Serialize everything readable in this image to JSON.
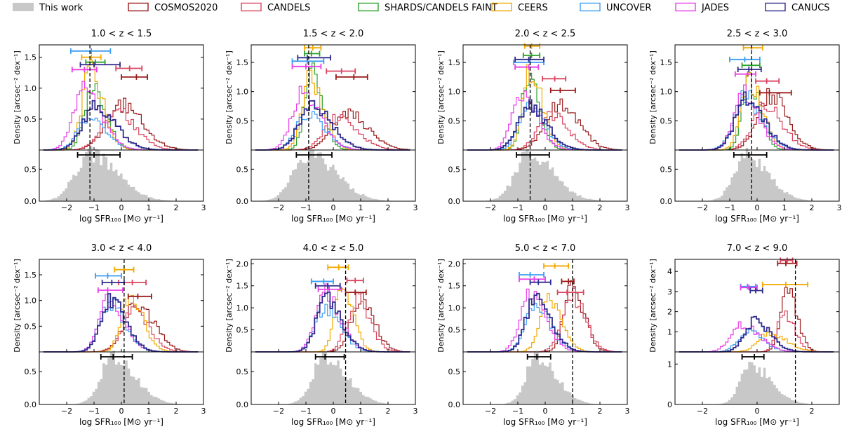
{
  "legend": [
    {
      "label": "This work",
      "color": "#c8c8c8",
      "kind": "fill"
    },
    {
      "label": "COSMOS2020",
      "color": "#9b1b1b",
      "kind": "line"
    },
    {
      "label": "CANDELS",
      "color": "#d9455f",
      "kind": "line"
    },
    {
      "label": "SHARDS/CANDELS FAINT",
      "color": "#2ca02c",
      "kind": "line"
    },
    {
      "label": "CEERS",
      "color": "#f2a900",
      "kind": "line"
    },
    {
      "label": "UNCOVER",
      "color": "#3d9df2",
      "kind": "line"
    },
    {
      "label": "JADES",
      "color": "#e83ee8",
      "kind": "line"
    },
    {
      "label": "CANUCS",
      "color": "#2e2a8e",
      "kind": "line"
    }
  ],
  "axis_text": {
    "ylabel_top": "Density [arcsec⁻² dex⁻¹]",
    "xlabel": "log SFR₁₀₀ [M⊙ yr⁻¹]"
  },
  "chart_data": [
    {
      "type": "histogram",
      "title": "1.0 < z < 1.5",
      "xlim": [
        -3,
        3
      ],
      "ylim_top": [
        0,
        1.7
      ],
      "yticks_top": [
        0,
        0.5,
        1.0,
        1.5
      ],
      "ylim_bot": [
        0,
        0.8
      ],
      "yticks_bot": [
        0,
        0.5
      ],
      "xticks": [
        -2,
        -1,
        0,
        1,
        2,
        3
      ],
      "ref_line": -1.15,
      "surveys": [
        {
          "name": "COSMOS2020",
          "peak": 0.0,
          "width": 0.55,
          "height": 0.72,
          "err": {
            "y": 1.18,
            "c": 0.55,
            "lo": 0.0,
            "hi": 0.95
          }
        },
        {
          "name": "CANDELS",
          "peak": -0.2,
          "width": 0.5,
          "height": 0.65,
          "err": {
            "y": 1.32,
            "c": 0.3,
            "lo": -0.2,
            "hi": 0.75
          }
        },
        {
          "name": "SHARDS/CANDELS FAINT",
          "peak": -1.05,
          "width": 0.3,
          "height": 1.05,
          "err": {
            "y": 1.42,
            "c": -0.95,
            "lo": -1.3,
            "hi": -0.6
          }
        },
        {
          "name": "CEERS",
          "peak": -1.15,
          "width": 0.3,
          "height": 1.25,
          "err": {
            "y": 1.5,
            "c": -1.1,
            "lo": -1.45,
            "hi": -0.75
          }
        },
        {
          "name": "UNCOVER",
          "peak": -1.2,
          "width": 0.4,
          "height": 0.5,
          "err": {
            "y": 1.6,
            "c": -1.1,
            "lo": -1.85,
            "hi": -0.4
          }
        },
        {
          "name": "JADES",
          "peak": -1.35,
          "width": 0.4,
          "height": 0.95,
          "err": {
            "y": 1.3,
            "c": -1.35,
            "lo": -1.8,
            "hi": -0.9
          }
        },
        {
          "name": "CANUCS",
          "peak": -0.95,
          "width": 0.45,
          "height": 0.7,
          "err": {
            "y": 1.38,
            "c": -1.0,
            "lo": -1.5,
            "hi": -0.05
          }
        }
      ],
      "this_work": {
        "peak": -1.15,
        "width": 0.55,
        "height": 0.73,
        "err": {
          "c": -1.0,
          "lo": -1.6,
          "hi": -0.05
        }
      }
    },
    {
      "type": "histogram",
      "title": "1.5 < z < 2.0",
      "xlim": [
        -3,
        3
      ],
      "ylim_top": [
        0,
        1.8
      ],
      "yticks_top": [
        0,
        0.5,
        1.0,
        1.5
      ],
      "ylim_bot": [
        0,
        0.8
      ],
      "yticks_bot": [
        0,
        0.5
      ],
      "xticks": [
        -2,
        -1,
        0,
        1,
        2,
        3
      ],
      "ref_line": -0.9,
      "surveys": [
        {
          "name": "COSMOS2020",
          "peak": 0.5,
          "width": 0.55,
          "height": 0.62,
          "err": {
            "y": 1.25,
            "c": 0.75,
            "lo": 0.1,
            "hi": 1.25
          }
        },
        {
          "name": "CANDELS",
          "peak": 0.2,
          "width": 0.5,
          "height": 0.55,
          "err": {
            "y": 1.35,
            "c": 0.3,
            "lo": -0.25,
            "hi": 0.8
          }
        },
        {
          "name": "SHARDS/CANDELS FAINT",
          "peak": -0.8,
          "width": 0.25,
          "height": 1.35,
          "err": {
            "y": 1.65,
            "c": -0.8,
            "lo": -1.05,
            "hi": -0.5
          }
        },
        {
          "name": "CEERS",
          "peak": -0.85,
          "width": 0.3,
          "height": 1.2,
          "err": {
            "y": 1.75,
            "c": -0.75,
            "lo": -1.05,
            "hi": -0.45
          }
        },
        {
          "name": "UNCOVER",
          "peak": -0.95,
          "width": 0.4,
          "height": 0.6,
          "err": {
            "y": 1.52,
            "c": -0.95,
            "lo": -1.5,
            "hi": -0.35
          }
        },
        {
          "name": "JADES",
          "peak": -1.1,
          "width": 0.4,
          "height": 1.0,
          "err": {
            "y": 1.43,
            "c": -1.0,
            "lo": -1.5,
            "hi": -0.45
          }
        },
        {
          "name": "CANUCS",
          "peak": -0.8,
          "width": 0.45,
          "height": 0.75,
          "err": {
            "y": 1.58,
            "c": -0.95,
            "lo": -1.3,
            "hi": -0.1
          }
        }
      ],
      "this_work": {
        "peak": -0.9,
        "width": 0.55,
        "height": 0.73,
        "err": {
          "c": -0.9,
          "lo": -1.35,
          "hi": -0.05
        }
      }
    },
    {
      "type": "histogram",
      "title": "2.0 < z < 2.5",
      "xlim": [
        -3,
        3
      ],
      "ylim_top": [
        0,
        1.8
      ],
      "yticks_top": [
        0,
        0.5,
        1.0,
        1.5
      ],
      "ylim_bot": [
        0,
        0.8
      ],
      "yticks_bot": [
        0,
        0.5
      ],
      "xticks": [
        -2,
        -1,
        0,
        1,
        2,
        3
      ],
      "ref_line": -0.55,
      "surveys": [
        {
          "name": "COSMOS2020",
          "peak": 0.5,
          "width": 0.5,
          "height": 0.8,
          "err": {
            "y": 1.02,
            "c": 0.55,
            "lo": 0.2,
            "hi": 1.1
          }
        },
        {
          "name": "CANDELS",
          "peak": 0.2,
          "width": 0.45,
          "height": 0.6,
          "err": {
            "y": 1.22,
            "c": 0.35,
            "lo": -0.1,
            "hi": 0.75
          }
        },
        {
          "name": "SHARDS/CANDELS FAINT",
          "peak": -0.6,
          "width": 0.25,
          "height": 1.25,
          "err": {
            "y": 1.62,
            "c": -0.5,
            "lo": -0.8,
            "hi": -0.2
          }
        },
        {
          "name": "CEERS",
          "peak": -0.55,
          "width": 0.28,
          "height": 1.3,
          "err": {
            "y": 1.78,
            "c": -0.5,
            "lo": -0.75,
            "hi": -0.2
          }
        },
        {
          "name": "UNCOVER",
          "peak": -0.6,
          "width": 0.35,
          "height": 0.8,
          "err": {
            "y": 1.5,
            "c": -0.55,
            "lo": -1.15,
            "hi": -0.05
          }
        },
        {
          "name": "JADES",
          "peak": -0.85,
          "width": 0.35,
          "height": 0.95,
          "err": {
            "y": 1.42,
            "c": -0.6,
            "lo": -1.1,
            "hi": -0.25
          }
        },
        {
          "name": "CANUCS",
          "peak": -0.6,
          "width": 0.4,
          "height": 0.75,
          "err": {
            "y": 1.55,
            "c": -0.6,
            "lo": -1.1,
            "hi": -0.05
          }
        }
      ],
      "this_work": {
        "peak": -0.6,
        "width": 0.5,
        "height": 0.73,
        "err": {
          "c": -0.55,
          "lo": -1.05,
          "hi": 0.15
        }
      }
    },
    {
      "type": "histogram",
      "title": "2.5 < z < 3.0",
      "xlim": [
        -3,
        3
      ],
      "ylim_top": [
        0,
        1.8
      ],
      "yticks_top": [
        0,
        0.5,
        1.0,
        1.5
      ],
      "ylim_bot": [
        0,
        0.8
      ],
      "yticks_bot": [
        0,
        0.5
      ],
      "xticks": [
        -2,
        -1,
        0,
        1,
        2,
        3
      ],
      "ref_line": -0.2,
      "surveys": [
        {
          "name": "COSMOS2020",
          "peak": 0.45,
          "width": 0.45,
          "height": 0.95,
          "err": {
            "y": 0.98,
            "c": 0.45,
            "lo": 0.1,
            "hi": 1.25
          }
        },
        {
          "name": "CANDELS",
          "peak": 0.3,
          "width": 0.45,
          "height": 0.75,
          "err": {
            "y": 1.18,
            "c": 0.35,
            "lo": -0.05,
            "hi": 0.8
          }
        },
        {
          "name": "SHARDS/CANDELS FAINT",
          "peak": -0.3,
          "width": 0.25,
          "height": 1.2,
          "err": {
            "y": 1.45,
            "c": -0.2,
            "lo": -0.55,
            "hi": 0.1
          }
        },
        {
          "name": "CEERS",
          "peak": -0.3,
          "width": 0.3,
          "height": 1.2,
          "err": {
            "y": 1.75,
            "c": -0.2,
            "lo": -0.5,
            "hi": 0.2
          }
        },
        {
          "name": "UNCOVER",
          "peak": -0.45,
          "width": 0.4,
          "height": 0.9,
          "err": {
            "y": 1.55,
            "c": -0.45,
            "lo": -1.0,
            "hi": 0.1
          }
        },
        {
          "name": "JADES",
          "peak": -0.5,
          "width": 0.35,
          "height": 0.95,
          "err": {
            "y": 1.3,
            "c": -0.35,
            "lo": -0.8,
            "hi": -0.05
          }
        },
        {
          "name": "CANUCS",
          "peak": -0.4,
          "width": 0.4,
          "height": 0.9,
          "err": {
            "y": 1.38,
            "c": -0.3,
            "lo": -0.7,
            "hi": 0.15
          }
        }
      ],
      "this_work": {
        "peak": -0.4,
        "width": 0.45,
        "height": 0.72,
        "err": {
          "c": -0.3,
          "lo": -0.85,
          "hi": 0.35
        }
      }
    },
    {
      "type": "histogram",
      "title": "3.0 < z < 4.0",
      "xlim": [
        -3,
        3
      ],
      "ylim_top": [
        0,
        1.8
      ],
      "yticks_top": [
        0,
        0.5,
        1.0,
        1.5
      ],
      "ylim_bot": [
        0,
        0.8
      ],
      "yticks_bot": [
        0,
        0.5
      ],
      "xticks": [
        -2,
        -1,
        0,
        1,
        2,
        3
      ],
      "ref_line": 0.1,
      "surveys": [
        {
          "name": "COSMOS2020",
          "peak": 0.55,
          "width": 0.45,
          "height": 0.95,
          "err": {
            "y": 1.08,
            "c": 0.6,
            "lo": 0.25,
            "hi": 1.1
          }
        },
        {
          "name": "CANDELS",
          "peak": 0.45,
          "width": 0.4,
          "height": 0.8,
          "err": {
            "y": 1.35,
            "c": 0.4,
            "lo": -0.1,
            "hi": 0.9
          }
        },
        {
          "name": "CEERS",
          "peak": 0.3,
          "width": 0.3,
          "height": 1.1,
          "err": {
            "y": 1.6,
            "c": 0.1,
            "lo": -0.25,
            "hi": 0.45
          }
        },
        {
          "name": "UNCOVER",
          "peak": -0.45,
          "width": 0.35,
          "height": 0.95,
          "err": {
            "y": 1.48,
            "c": -0.5,
            "lo": -0.95,
            "hi": 0.0
          }
        },
        {
          "name": "JADES",
          "peak": -0.45,
          "width": 0.35,
          "height": 1.0,
          "err": {
            "y": 1.2,
            "c": -0.5,
            "lo": -0.85,
            "hi": 0.05
          }
        },
        {
          "name": "CANUCS",
          "peak": -0.4,
          "width": 0.35,
          "height": 1.0,
          "err": {
            "y": 1.35,
            "c": -0.35,
            "lo": -0.7,
            "hi": 0.1
          }
        }
      ],
      "this_work": {
        "peak": -0.3,
        "width": 0.45,
        "height": 0.72,
        "err": {
          "c": -0.3,
          "lo": -0.75,
          "hi": 0.4
        }
      }
    },
    {
      "type": "histogram",
      "title": "4.0 < z < 5.0",
      "xlim": [
        -3,
        3
      ],
      "ylim_top": [
        0,
        2.1
      ],
      "yticks_top": [
        0,
        0.5,
        1.0,
        1.5,
        2.0
      ],
      "ylim_bot": [
        0,
        0.8
      ],
      "yticks_bot": [
        0,
        0.5
      ],
      "xticks": [
        -2,
        -1,
        0,
        1,
        2,
        3
      ],
      "ref_line": 0.45,
      "surveys": [
        {
          "name": "COSMOS2020",
          "peak": 1.0,
          "width": 0.35,
          "height": 1.2,
          "err": {
            "y": 1.35,
            "c": 0.8,
            "lo": 0.45,
            "hi": 1.2
          }
        },
        {
          "name": "CANDELS",
          "peak": 0.85,
          "width": 0.35,
          "height": 1.15,
          "err": {
            "y": 1.62,
            "c": 0.8,
            "lo": 0.5,
            "hi": 1.1
          }
        },
        {
          "name": "CEERS",
          "peak": 0.3,
          "width": 0.25,
          "height": 1.6,
          "err": {
            "y": 1.92,
            "c": 0.2,
            "lo": -0.2,
            "hi": 0.55
          }
        },
        {
          "name": "UNCOVER",
          "peak": -0.3,
          "width": 0.35,
          "height": 1.0,
          "err": {
            "y": 1.6,
            "c": -0.35,
            "lo": -0.8,
            "hi": 0.0
          }
        },
        {
          "name": "JADES",
          "peak": -0.3,
          "width": 0.35,
          "height": 1.35,
          "err": {
            "y": 1.42,
            "c": -0.15,
            "lo": -0.55,
            "hi": 0.3
          }
        },
        {
          "name": "CANUCS",
          "peak": -0.25,
          "width": 0.35,
          "height": 1.2,
          "err": {
            "y": 1.5,
            "c": -0.2,
            "lo": -0.65,
            "hi": 0.25
          }
        }
      ],
      "this_work": {
        "peak": -0.3,
        "width": 0.45,
        "height": 0.72,
        "err": {
          "c": -0.3,
          "lo": -0.65,
          "hi": 0.4
        }
      }
    },
    {
      "type": "histogram",
      "title": "5.0 < z < 7.0",
      "xlim": [
        -3,
        3
      ],
      "ylim_top": [
        0,
        2.1
      ],
      "yticks_top": [
        0,
        0.5,
        1.0,
        1.5,
        2.0
      ],
      "ylim_bot": [
        0,
        0.8
      ],
      "yticks_bot": [
        0,
        0.5
      ],
      "xticks": [
        -2,
        -1,
        0,
        1,
        2,
        3
      ],
      "ref_line": 1.0,
      "surveys": [
        {
          "name": "COSMOS2020",
          "peak": 1.0,
          "width": 0.3,
          "height": 1.45,
          "err": {
            "y": 1.6,
            "c": 0.85,
            "lo": 0.6,
            "hi": 1.05
          }
        },
        {
          "name": "CANDELS",
          "peak": 0.95,
          "width": 0.35,
          "height": 1.3,
          "err": {
            "y": 1.35,
            "c": 0.8,
            "lo": 0.45,
            "hi": 1.4
          }
        },
        {
          "name": "CEERS",
          "peak": 0.1,
          "width": 0.3,
          "height": 1.2,
          "err": {
            "y": 1.95,
            "c": 0.35,
            "lo": -0.05,
            "hi": 0.85
          }
        },
        {
          "name": "UNCOVER",
          "peak": -0.4,
          "width": 0.35,
          "height": 1.1,
          "err": {
            "y": 1.75,
            "c": -0.55,
            "lo": -0.95,
            "hi": -0.05
          }
        },
        {
          "name": "JADES",
          "peak": -0.55,
          "width": 0.35,
          "height": 1.35,
          "err": {
            "y": 1.65,
            "c": -0.4,
            "lo": -0.95,
            "hi": 0.0
          }
        },
        {
          "name": "CANUCS",
          "peak": -0.35,
          "width": 0.35,
          "height": 1.25,
          "err": {
            "y": 1.58,
            "c": -0.25,
            "lo": -0.55,
            "hi": 0.2
          }
        }
      ],
      "this_work": {
        "peak": -0.3,
        "width": 0.4,
        "height": 0.72,
        "err": {
          "c": -0.3,
          "lo": -0.65,
          "hi": 0.2
        }
      }
    },
    {
      "type": "histogram",
      "title": "7.0 < z < 9.0",
      "xlim": [
        -3,
        3
      ],
      "ylim_top": [
        0,
        4.6
      ],
      "yticks_top": [
        0,
        1,
        2,
        3,
        4
      ],
      "ylim_bot": [
        0,
        1.3
      ],
      "yticks_bot": [
        0,
        1
      ],
      "xticks": [
        -2,
        0,
        2
      ],
      "ref_line": 1.4,
      "surveys": [
        {
          "name": "COSMOS2020",
          "peak": 1.1,
          "width": 0.25,
          "height": 3.2,
          "err": {
            "y": 4.4,
            "c": 1.05,
            "lo": 0.75,
            "hi": 1.45
          }
        },
        {
          "name": "CANDELS",
          "peak": 1.0,
          "width": 0.25,
          "height": 2.0,
          "err": {
            "y": 4.55,
            "c": 1.1,
            "lo": 0.85,
            "hi": 1.3
          }
        },
        {
          "name": "CEERS",
          "peak": 0.45,
          "width": 0.4,
          "height": 0.9,
          "err": {
            "y": 3.35,
            "c": 1.05,
            "lo": 0.2,
            "hi": 1.85
          }
        },
        {
          "name": "UNCOVER",
          "peak": -0.35,
          "width": 0.35,
          "height": 1.0,
          "err": {
            "y": 3.25,
            "c": -0.35,
            "lo": -0.6,
            "hi": -0.05
          }
        },
        {
          "name": "JADES",
          "peak": -0.55,
          "width": 0.4,
          "height": 1.3,
          "err": {
            "y": 3.2,
            "c": -0.3,
            "lo": -0.6,
            "hi": 0.0
          }
        },
        {
          "name": "CANUCS",
          "peak": -0.1,
          "width": 0.35,
          "height": 1.55,
          "err": {
            "y": 3.05,
            "c": -0.05,
            "lo": -0.25,
            "hi": 0.2
          }
        }
      ],
      "this_work": {
        "peak": -0.2,
        "width": 0.4,
        "height": 0.95,
        "err": {
          "c": -0.1,
          "lo": -0.55,
          "hi": 0.25
        }
      }
    }
  ]
}
